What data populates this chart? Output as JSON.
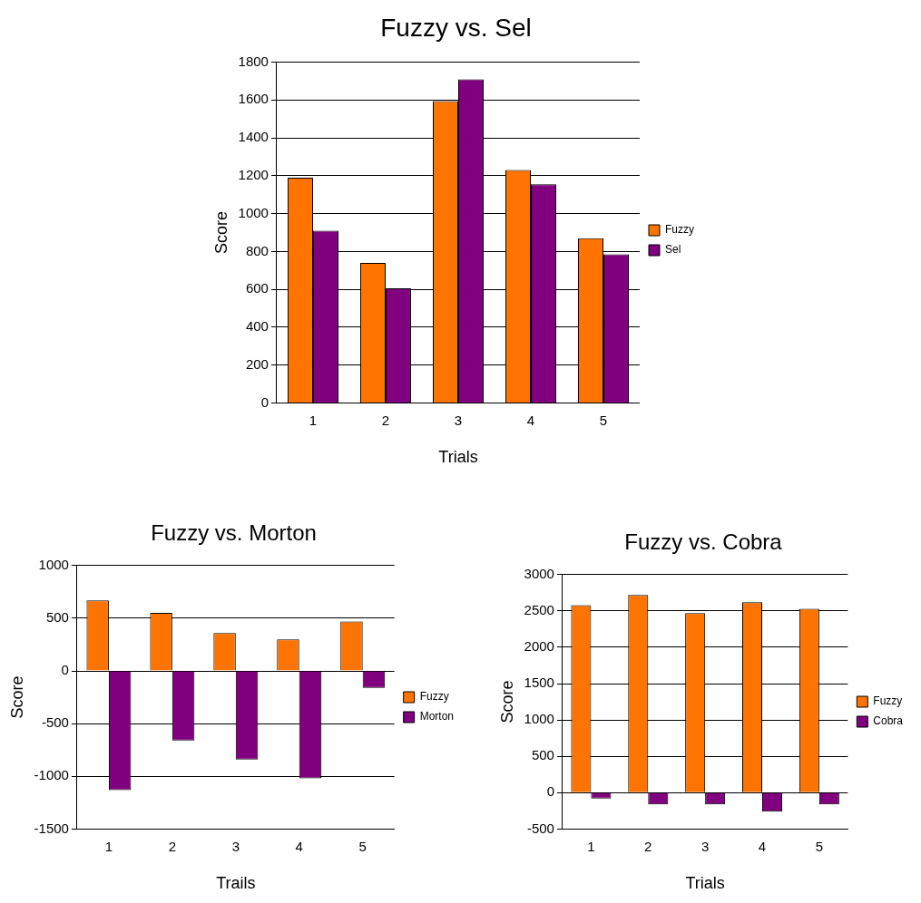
{
  "chart_data": [
    {
      "type": "bar",
      "title": "Fuzzy vs. Sel",
      "xlabel": "Trials",
      "ylabel": "Score",
      "categories": [
        "1",
        "2",
        "3",
        "4",
        "5"
      ],
      "series": [
        {
          "name": "Fuzzy",
          "color": "#ff7300",
          "values": [
            1190,
            740,
            1595,
            1230,
            870
          ]
        },
        {
          "name": "Sel",
          "color": "#800080",
          "values": [
            910,
            605,
            1710,
            1155,
            785
          ]
        }
      ],
      "ylim": [
        0,
        1800
      ],
      "yticks": [
        0,
        200,
        400,
        600,
        800,
        1000,
        1200,
        1400,
        1600,
        1800
      ],
      "grid": "y",
      "legend": "right"
    },
    {
      "type": "bar",
      "title": "Fuzzy vs. Morton",
      "xlabel": "Trails",
      "ylabel": "Score",
      "categories": [
        "1",
        "2",
        "3",
        "4",
        "5"
      ],
      "series": [
        {
          "name": "Fuzzy",
          "color": "#ff7300",
          "values": [
            670,
            550,
            360,
            300,
            470
          ]
        },
        {
          "name": "Morton",
          "color": "#800080",
          "values": [
            -1130,
            -660,
            -840,
            -1020,
            -160
          ]
        }
      ],
      "ylim": [
        -1500,
        1000
      ],
      "yticks": [
        -1500,
        -1000,
        -500,
        0,
        500,
        1000
      ],
      "grid": "y",
      "legend": "right"
    },
    {
      "type": "bar",
      "title": "Fuzzy vs. Cobra",
      "xlabel": "Trials",
      "ylabel": "Score",
      "categories": [
        "1",
        "2",
        "3",
        "4",
        "5"
      ],
      "series": [
        {
          "name": "Fuzzy",
          "color": "#ff7300",
          "values": [
            2580,
            2720,
            2470,
            2620,
            2530
          ]
        },
        {
          "name": "Cobra",
          "color": "#800080",
          "values": [
            -80,
            -160,
            -160,
            -260,
            -160
          ]
        }
      ],
      "ylim": [
        -500,
        3000
      ],
      "yticks": [
        -500,
        0,
        500,
        1000,
        1500,
        2000,
        2500,
        3000
      ],
      "grid": "y",
      "legend": "right"
    }
  ]
}
